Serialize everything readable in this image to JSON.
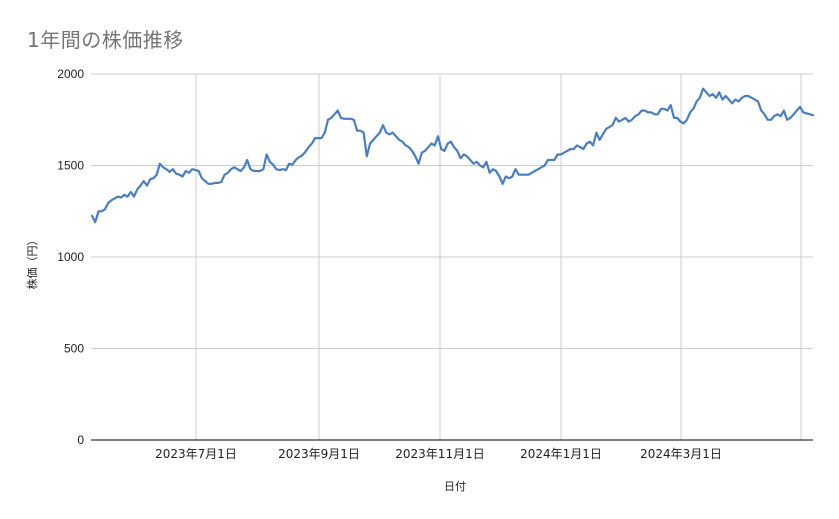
{
  "chart_data": {
    "type": "line",
    "title": "1年間の株価推移",
    "xlabel": "日付",
    "ylabel": "株価（円）",
    "ylim": [
      0,
      2000
    ],
    "yticks": [
      "0",
      "500",
      "1000",
      "1500",
      "2000"
    ],
    "xtick_labels": [
      "2023年7月1日",
      "2023年9月1日",
      "2023年11月1日",
      "2024年1月1日",
      "2024年3月1日"
    ],
    "grid": true,
    "legend": "none",
    "line_color": "#4a7ebf",
    "series": [
      {
        "name": "株価",
        "x_start": "2023年5月上旬",
        "x_end": "2024年5月上旬",
        "values": [
          1225,
          1190,
          1250,
          1250,
          1260,
          1295,
          1310,
          1320,
          1330,
          1325,
          1340,
          1330,
          1355,
          1330,
          1370,
          1390,
          1415,
          1390,
          1425,
          1430,
          1450,
          1510,
          1490,
          1480,
          1465,
          1480,
          1455,
          1450,
          1440,
          1470,
          1460,
          1480,
          1475,
          1470,
          1430,
          1415,
          1400,
          1400,
          1405,
          1405,
          1410,
          1450,
          1460,
          1480,
          1490,
          1480,
          1470,
          1490,
          1530,
          1480,
          1470,
          1470,
          1470,
          1480,
          1560,
          1520,
          1505,
          1480,
          1475,
          1480,
          1475,
          1510,
          1505,
          1530,
          1545,
          1555,
          1575,
          1600,
          1620,
          1650,
          1650,
          1650,
          1680,
          1750,
          1760,
          1780,
          1800,
          1760,
          1755,
          1755,
          1755,
          1750,
          1690,
          1690,
          1680,
          1550,
          1620,
          1640,
          1660,
          1680,
          1720,
          1680,
          1670,
          1680,
          1660,
          1640,
          1630,
          1610,
          1600,
          1580,
          1550,
          1510,
          1570,
          1580,
          1600,
          1620,
          1610,
          1660,
          1590,
          1580,
          1620,
          1630,
          1600,
          1580,
          1540,
          1560,
          1550,
          1530,
          1510,
          1520,
          1500,
          1490,
          1520,
          1460,
          1480,
          1470,
          1440,
          1400,
          1440,
          1430,
          1440,
          1480,
          1450,
          1450,
          1450,
          1450,
          1460,
          1470,
          1480,
          1490,
          1500,
          1530,
          1530,
          1530,
          1560,
          1560,
          1570,
          1580,
          1590,
          1590,
          1610,
          1600,
          1590,
          1620,
          1630,
          1610,
          1680,
          1640,
          1670,
          1700,
          1710,
          1720,
          1760,
          1740,
          1750,
          1760,
          1740,
          1750,
          1770,
          1780,
          1800,
          1800,
          1790,
          1790,
          1780,
          1780,
          1810,
          1810,
          1800,
          1830,
          1760,
          1760,
          1740,
          1730,
          1750,
          1790,
          1810,
          1850,
          1870,
          1920,
          1900,
          1880,
          1890,
          1870,
          1900,
          1860,
          1880,
          1860,
          1840,
          1860,
          1850,
          1870,
          1880,
          1880,
          1870,
          1860,
          1850,
          1800,
          1780,
          1750,
          1750,
          1770,
          1780,
          1770,
          1800,
          1750,
          1760,
          1780,
          1800,
          1820,
          1790,
          1785,
          1780,
          1775
        ]
      }
    ]
  }
}
